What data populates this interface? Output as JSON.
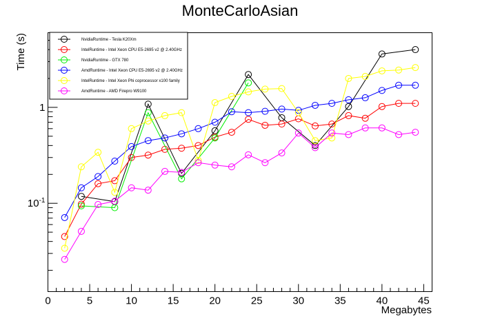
{
  "chart_data": {
    "type": "line",
    "title": "MonteCarloAsian",
    "xlabel": "Megabytes",
    "ylabel": "Time (s)",
    "xlim": [
      0,
      46
    ],
    "ylim": [
      0.012,
      6
    ],
    "y_scale": "log",
    "grid": false,
    "legend_position": "top-left",
    "x_ticks": [
      "0",
      "5",
      "10",
      "15",
      "20",
      "25",
      "30",
      "35",
      "40",
      "45"
    ],
    "y_ticks": [
      {
        "value": 0.1,
        "label": "10",
        "exp": "-1"
      },
      {
        "value": 1,
        "label": "1",
        "exp": ""
      }
    ],
    "series": [
      {
        "name": "NvidiaRuntime - Tesla K20Xm",
        "color": "#000000",
        "x": [
          4,
          8,
          12,
          16,
          20,
          24,
          28,
          32,
          36,
          40,
          44
        ],
        "y": [
          0.118,
          0.104,
          1.08,
          0.205,
          0.57,
          2.2,
          0.78,
          0.4,
          1.02,
          3.6,
          4.0
        ]
      },
      {
        "name": "IntelRuntime - Intel Xeon CPU E5-2695 v2 @ 2.40GHz",
        "color": "#ff0000",
        "x": [
          2,
          4,
          6,
          8,
          10,
          12,
          14,
          16,
          18,
          20,
          22,
          24,
          26,
          28,
          30,
          32,
          34,
          36,
          38,
          40,
          42,
          44
        ],
        "y": [
          0.045,
          0.098,
          0.16,
          0.172,
          0.3,
          0.318,
          0.365,
          0.375,
          0.4,
          0.49,
          0.55,
          0.75,
          0.65,
          0.67,
          0.76,
          0.64,
          0.67,
          0.82,
          0.77,
          1.02,
          1.1,
          1.1
        ]
      },
      {
        "name": "NvidiaRuntime - GTX 780",
        "color": "#00ee00",
        "x": [
          4,
          8,
          12,
          16,
          20,
          24
        ],
        "y": [
          0.094,
          0.09,
          0.88,
          0.18,
          0.48,
          1.8
        ]
      },
      {
        "name": "AmdRuntime - Intel Xeon CPU E5-2695 v2 @ 2.40GHz",
        "color": "#0000ff",
        "x": [
          2,
          4,
          6,
          8,
          10,
          12,
          14,
          16,
          18,
          20,
          22,
          24,
          26,
          28,
          30,
          32,
          34,
          36,
          38,
          40,
          42,
          44
        ],
        "y": [
          0.071,
          0.145,
          0.19,
          0.275,
          0.39,
          0.45,
          0.48,
          0.53,
          0.6,
          0.7,
          0.9,
          0.88,
          0.91,
          0.96,
          0.93,
          1.05,
          1.1,
          1.2,
          1.26,
          1.5,
          1.7,
          1.7
        ]
      },
      {
        "name": "IntelRuntime - Intel Xeon Phi coprocessor x100 family",
        "color": "#ffff00",
        "x": [
          2,
          4,
          6,
          8,
          10,
          12,
          14,
          16,
          18,
          20,
          22,
          24,
          26,
          28,
          30,
          32,
          34,
          36,
          38,
          40,
          42,
          44
        ],
        "y": [
          0.034,
          0.24,
          0.34,
          0.13,
          0.6,
          0.72,
          0.82,
          0.88,
          0.28,
          1.12,
          1.3,
          1.45,
          1.55,
          1.57,
          0.88,
          0.45,
          0.48,
          2.0,
          2.1,
          2.4,
          2.45,
          2.6
        ]
      },
      {
        "name": "AmdRuntime - AMD Firepro W9100",
        "color": "#ff00ff",
        "x": [
          2,
          4,
          6,
          8,
          10,
          12,
          14,
          16,
          18,
          20,
          22,
          24,
          26,
          28,
          30,
          32,
          34,
          36,
          38,
          40,
          42,
          44
        ],
        "y": [
          0.026,
          0.051,
          0.097,
          0.105,
          0.145,
          0.137,
          0.215,
          0.21,
          0.265,
          0.25,
          0.24,
          0.32,
          0.265,
          0.335,
          0.54,
          0.38,
          0.54,
          0.52,
          0.61,
          0.61,
          0.52,
          0.55
        ]
      }
    ]
  }
}
